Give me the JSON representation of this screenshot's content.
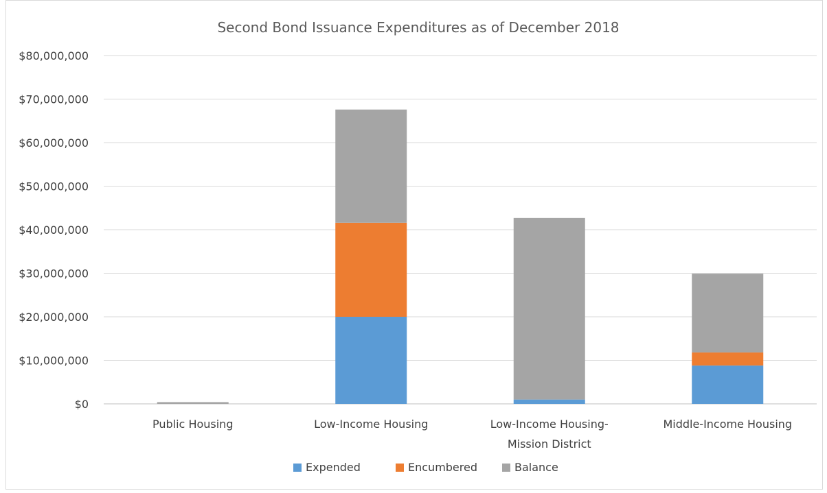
{
  "chart_data": {
    "type": "bar",
    "stacked": true,
    "title": "Second Bond Issuance Expenditures as of December 2018",
    "xlabel": "",
    "ylabel": "",
    "ylim": [
      0,
      80000000
    ],
    "y_ticks": [
      0,
      10000000,
      20000000,
      30000000,
      40000000,
      50000000,
      60000000,
      70000000,
      80000000
    ],
    "y_tick_labels": [
      "$0",
      "$10,000,000",
      "$20,000,000",
      "$30,000,000",
      "$40,000,000",
      "$50,000,000",
      "$60,000,000",
      "$70,000,000",
      "$80,000,000"
    ],
    "categories": [
      [
        "Public Housing"
      ],
      [
        "Low-Income Housing"
      ],
      [
        "Low-Income Housing-",
        "Mission District"
      ],
      [
        "Middle-Income Housing"
      ]
    ],
    "series": [
      {
        "name": "Expended",
        "color": "#5b9bd5",
        "values": [
          0,
          20000000,
          1000000,
          8800000
        ]
      },
      {
        "name": "Encumbered",
        "color": "#ed7d31",
        "values": [
          0,
          21600000,
          0,
          3000000
        ]
      },
      {
        "name": "Balance",
        "color": "#a5a5a5",
        "values": [
          400000,
          26000000,
          41700000,
          18100000
        ]
      }
    ],
    "grid": true,
    "legend_position": "bottom"
  }
}
